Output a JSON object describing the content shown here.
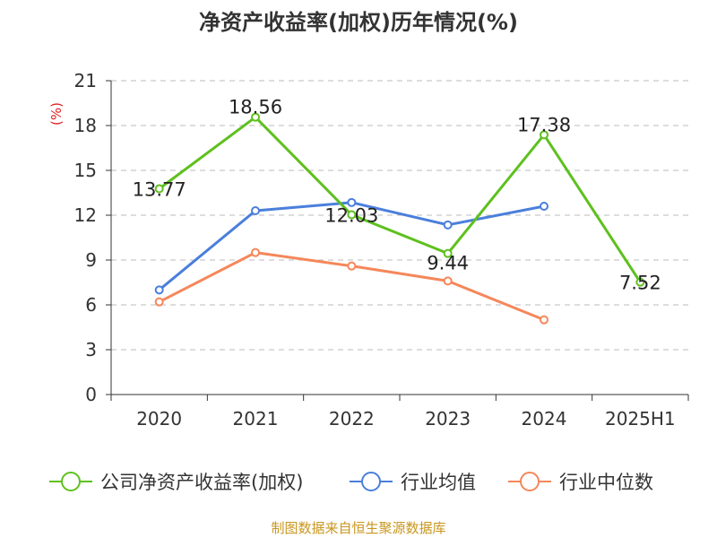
{
  "chart_data": {
    "type": "line",
    "title": "净资产收益率(加权)历年情况(%)",
    "y_unit": "(%)",
    "categories": [
      "2020",
      "2021",
      "2022",
      "2023",
      "2024",
      "2025H1"
    ],
    "ylim": [
      0,
      21
    ],
    "yticks": [
      0,
      3,
      6,
      9,
      12,
      15,
      18,
      21
    ],
    "grid": true,
    "legend_position": "bottom",
    "series": [
      {
        "name": "公司净资产收益率(加权)",
        "color": "#5ec01e",
        "values": [
          13.77,
          18.56,
          12.03,
          9.44,
          17.38,
          7.52
        ],
        "labels": [
          "13.77",
          "18.56",
          "12.03",
          "9.44",
          "17.38",
          "7.52"
        ]
      },
      {
        "name": "行业均值",
        "color": "#4a7fdc",
        "values": [
          7.0,
          12.3,
          12.85,
          11.35,
          12.6,
          null
        ]
      },
      {
        "name": "行业中位数",
        "color": "#f5875a",
        "values": [
          6.2,
          9.5,
          8.6,
          7.6,
          5.0,
          null
        ]
      }
    ],
    "source": "制图数据来自恒生聚源数据库"
  }
}
